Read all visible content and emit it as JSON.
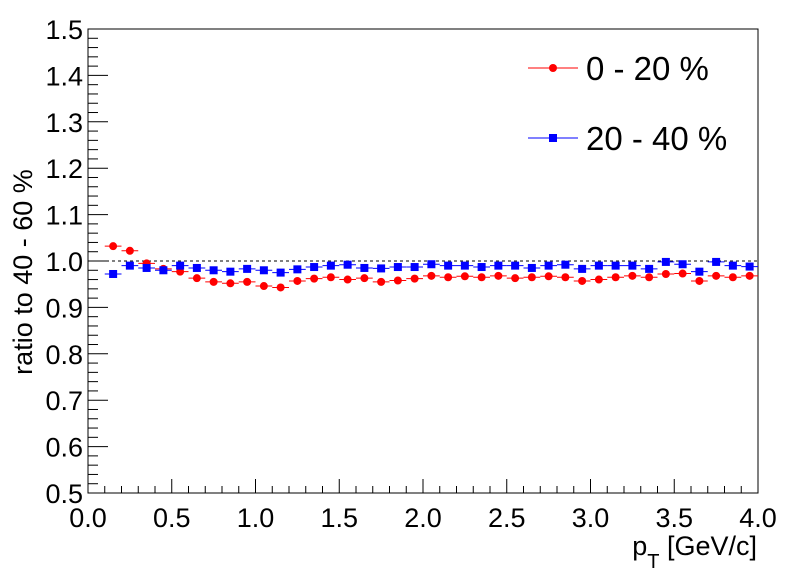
{
  "chart_data": {
    "type": "scatter",
    "title": "",
    "xlabel_main": "p",
    "xlabel_sub": "T",
    "xlabel_rest": " [GeV/c]",
    "ylabel": "ratio to 40 - 60 %",
    "xlim": [
      0.0,
      4.0
    ],
    "ylim": [
      0.5,
      1.5
    ],
    "x_ticks": [
      "0.0",
      "0.5",
      "1.0",
      "1.5",
      "2.0",
      "2.5",
      "3.0",
      "3.5",
      "4.0"
    ],
    "y_ticks": [
      "0.5",
      "0.6",
      "0.7",
      "0.8",
      "0.9",
      "1.0",
      "1.1",
      "1.2",
      "1.3",
      "1.4",
      "1.5"
    ],
    "reference_line": 1.0,
    "legend_position": "top-right",
    "x_halfwidth": 0.05,
    "series": [
      {
        "name": "0 - 20 %",
        "color": "#ff0000",
        "marker": "circle",
        "x": [
          0.15,
          0.25,
          0.35,
          0.45,
          0.55,
          0.65,
          0.75,
          0.85,
          0.95,
          1.05,
          1.15,
          1.25,
          1.35,
          1.45,
          1.55,
          1.65,
          1.75,
          1.85,
          1.95,
          2.05,
          2.15,
          2.25,
          2.35,
          2.45,
          2.55,
          2.65,
          2.75,
          2.85,
          2.95,
          3.05,
          3.15,
          3.25,
          3.35,
          3.45,
          3.55,
          3.65,
          3.75,
          3.85,
          3.95
        ],
        "y": [
          1.032,
          1.022,
          0.995,
          0.983,
          0.977,
          0.963,
          0.955,
          0.952,
          0.955,
          0.946,
          0.943,
          0.957,
          0.962,
          0.965,
          0.96,
          0.963,
          0.955,
          0.958,
          0.962,
          0.968,
          0.965,
          0.967,
          0.965,
          0.968,
          0.963,
          0.965,
          0.967,
          0.965,
          0.957,
          0.96,
          0.965,
          0.968,
          0.965,
          0.972,
          0.973,
          0.957,
          0.968,
          0.965,
          0.968
        ]
      },
      {
        "name": "20 - 40 %",
        "color": "#0000ff",
        "marker": "square",
        "x": [
          0.15,
          0.25,
          0.35,
          0.45,
          0.55,
          0.65,
          0.75,
          0.85,
          0.95,
          1.05,
          1.15,
          1.25,
          1.35,
          1.45,
          1.55,
          1.65,
          1.75,
          1.85,
          1.95,
          2.05,
          2.15,
          2.25,
          2.35,
          2.45,
          2.55,
          2.65,
          2.75,
          2.85,
          2.95,
          3.05,
          3.15,
          3.25,
          3.35,
          3.45,
          3.55,
          3.65,
          3.75,
          3.85,
          3.95
        ],
        "y": [
          0.972,
          0.99,
          0.985,
          0.98,
          0.99,
          0.985,
          0.98,
          0.977,
          0.983,
          0.98,
          0.975,
          0.982,
          0.987,
          0.99,
          0.992,
          0.985,
          0.984,
          0.987,
          0.987,
          0.993,
          0.99,
          0.99,
          0.987,
          0.99,
          0.99,
          0.985,
          0.99,
          0.992,
          0.983,
          0.99,
          0.99,
          0.99,
          0.983,
          0.998,
          0.993,
          0.977,
          0.998,
          0.99,
          0.988
        ]
      }
    ]
  }
}
